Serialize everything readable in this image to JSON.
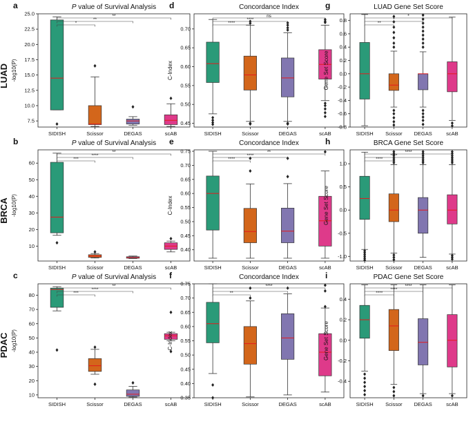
{
  "figure": {
    "row_labels": [
      "LUAD",
      "BRCA",
      "PDAC"
    ],
    "colors": {
      "SIDISH": "#2a9a78",
      "Scissor": "#d3661b",
      "DEGAS": "#8176b0",
      "scAB": "#de3a8a",
      "median": "#e41a1c",
      "outlier": "#222222"
    }
  },
  "chart_data": [
    {
      "type": "box",
      "panel": "a",
      "title": "P value of Survival Analysis",
      "title_italic_prefix": "P",
      "ylabel": "-log10(P)",
      "categories": [
        "SIDISH",
        "Scissor",
        "DEGAS",
        "scAB"
      ],
      "ylim": [
        6.5,
        25
      ],
      "yticks": [
        7.5,
        10.0,
        12.5,
        15.0,
        17.5,
        20.0,
        22.5,
        25.0
      ],
      "tick_decimals": 1,
      "boxes": [
        {
          "q1": 9.3,
          "median": 14.5,
          "q3": 24.0,
          "whislo": 9.3,
          "whishi": 24.5,
          "fliers": [
            7.0
          ]
        },
        {
          "q1": 6.9,
          "median": 7.0,
          "q3": 10.0,
          "whislo": 6.6,
          "whishi": 14.7,
          "fliers": [
            16.5
          ]
        },
        {
          "q1": 7.0,
          "median": 7.5,
          "q3": 7.8,
          "whislo": 6.8,
          "whishi": 8.2,
          "fliers": [
            9.8
          ]
        },
        {
          "q1": 6.9,
          "median": 7.6,
          "q3": 8.5,
          "whislo": 6.6,
          "whishi": 10.3,
          "fliers": [
            11.2
          ]
        }
      ],
      "significance": [
        {
          "from": 0,
          "to": 1,
          "label": "*"
        },
        {
          "from": 0,
          "to": 2,
          "label": "**"
        },
        {
          "from": 0,
          "to": 3,
          "label": "**"
        }
      ]
    },
    {
      "type": "box",
      "panel": "d",
      "title": "Concordance Index",
      "ylabel": "C-Index",
      "categories": [
        "SIDISH",
        "Scissor",
        "DEGAS",
        "scAB"
      ],
      "ylim": [
        0.44,
        0.74
      ],
      "yticks": [
        0.45,
        0.5,
        0.55,
        0.6,
        0.65,
        0.7
      ],
      "tick_decimals": 2,
      "boxes": [
        {
          "q1": 0.558,
          "median": 0.608,
          "q3": 0.665,
          "whislo": 0.475,
          "whishi": 0.725,
          "fliers": [
            0.447,
            0.452,
            0.458,
            0.465
          ]
        },
        {
          "q1": 0.538,
          "median": 0.578,
          "q3": 0.628,
          "whislo": 0.455,
          "whishi": 0.71,
          "fliers": [
            0.715,
            0.72,
            0.448,
            0.45
          ]
        },
        {
          "q1": 0.52,
          "median": 0.57,
          "q3": 0.623,
          "whislo": 0.455,
          "whishi": 0.69,
          "fliers": [
            0.697,
            0.703,
            0.71,
            0.716,
            0.45,
            0.448
          ]
        },
        {
          "q1": 0.567,
          "median": 0.606,
          "q3": 0.645,
          "whislo": 0.51,
          "whishi": 0.71,
          "fliers": [
            0.717,
            0.72,
            0.725,
            0.468,
            0.478,
            0.488,
            0.497,
            0.503
          ]
        }
      ],
      "significance": [
        {
          "from": 0,
          "to": 1,
          "label": "****"
        },
        {
          "from": 0,
          "to": 2,
          "label": "****"
        },
        {
          "from": 0,
          "to": 3,
          "label": "ns"
        }
      ]
    },
    {
      "type": "box",
      "panel": "g",
      "title": "LUAD Gene Set Score",
      "ylabel": "Gene Set Score",
      "categories": [
        "SIDISH",
        "Scissor",
        "DEGAS",
        "scAB"
      ],
      "ylim": [
        -0.8,
        0.9
      ],
      "yticks": [
        -0.8,
        -0.6,
        -0.4,
        -0.2,
        0.0,
        0.2,
        0.4,
        0.6,
        0.8
      ],
      "tick_decimals": 1,
      "boxes": [
        {
          "q1": -0.38,
          "median": 0.0,
          "q3": 0.47,
          "whislo": -0.78,
          "whishi": 0.89,
          "fliers": []
        },
        {
          "q1": -0.25,
          "median": -0.17,
          "q3": 0.0,
          "whislo": -0.5,
          "whishi": 0.34,
          "fliers": [
            0.4,
            0.46,
            0.54,
            0.62,
            0.7,
            0.78,
            0.86,
            -0.55,
            -0.6,
            -0.66,
            -0.72,
            -0.77
          ]
        },
        {
          "q1": -0.24,
          "median": 0.0,
          "q3": 0.0,
          "whislo": -0.5,
          "whishi": 0.33,
          "fliers": [
            0.4,
            0.46,
            0.52,
            0.58,
            0.64,
            0.7,
            0.76,
            0.82,
            0.88,
            -0.55,
            -0.6,
            -0.65,
            -0.7,
            -0.76
          ]
        },
        {
          "q1": -0.27,
          "median": 0.0,
          "q3": 0.18,
          "whislo": -0.7,
          "whishi": 0.85,
          "fliers": [
            -0.74,
            -0.78
          ]
        }
      ],
      "significance": [
        {
          "from": 0,
          "to": 1,
          "label": "**"
        },
        {
          "from": 0,
          "to": 2,
          "label": "*"
        },
        {
          "from": 0,
          "to": 3,
          "label": "*"
        }
      ]
    },
    {
      "type": "box",
      "panel": "b",
      "title": "P value of Survival Analysis",
      "title_italic_prefix": "P",
      "ylabel": "-log10(P)",
      "categories": [
        "SIDISH",
        "Scissor",
        "DEGAS",
        "scAB"
      ],
      "ylim": [
        1,
        68
      ],
      "yticks": [
        10,
        20,
        30,
        40,
        50,
        60
      ],
      "tick_decimals": 0,
      "boxes": [
        {
          "q1": 18.0,
          "median": 27.5,
          "q3": 60.5,
          "whislo": 16.5,
          "whishi": 66.0,
          "fliers": [
            12.0
          ]
        },
        {
          "q1": 3.2,
          "median": 4.0,
          "q3": 4.8,
          "whislo": 2.8,
          "whishi": 5.5,
          "fliers": [
            6.5
          ]
        },
        {
          "q1": 2.7,
          "median": 3.1,
          "q3": 3.6,
          "whislo": 2.5,
          "whishi": 4.0,
          "fliers": []
        },
        {
          "q1": 8.0,
          "median": 10.0,
          "q3": 12.0,
          "whislo": 6.5,
          "whishi": 13.0,
          "fliers": [
            14.5
          ]
        }
      ],
      "significance": [
        {
          "from": 0,
          "to": 1,
          "label": "***"
        },
        {
          "from": 0,
          "to": 2,
          "label": "****"
        },
        {
          "from": 0,
          "to": 3,
          "label": "**"
        }
      ]
    },
    {
      "type": "box",
      "panel": "e",
      "title": "Concordance Index",
      "ylabel": "C-Index",
      "categories": [
        "SIDISH",
        "Scissor",
        "DEGAS",
        "scAB"
      ],
      "ylim": [
        0.36,
        0.755
      ],
      "yticks": [
        0.4,
        0.45,
        0.5,
        0.55,
        0.6,
        0.65,
        0.7,
        0.75
      ],
      "tick_decimals": 2,
      "boxes": [
        {
          "q1": 0.47,
          "median": 0.6,
          "q3": 0.662,
          "whislo": 0.37,
          "whishi": 0.75,
          "fliers": []
        },
        {
          "q1": 0.425,
          "median": 0.465,
          "q3": 0.547,
          "whislo": 0.37,
          "whishi": 0.634,
          "fliers": [
            0.68,
            0.725
          ]
        },
        {
          "q1": 0.425,
          "median": 0.466,
          "q3": 0.548,
          "whislo": 0.37,
          "whishi": 0.635,
          "fliers": [
            0.66,
            0.725
          ]
        },
        {
          "q1": 0.413,
          "median": 0.503,
          "q3": 0.59,
          "whislo": 0.37,
          "whishi": 0.68,
          "fliers": [
            0.748
          ]
        }
      ],
      "significance": [
        {
          "from": 0,
          "to": 1,
          "label": "****"
        },
        {
          "from": 0,
          "to": 2,
          "label": "****"
        },
        {
          "from": 0,
          "to": 3,
          "label": "**"
        }
      ]
    },
    {
      "type": "box",
      "panel": "h",
      "title": "BRCA Gene Set Score",
      "ylabel": "Gene Set Score",
      "categories": [
        "SIDISH",
        "Scissor",
        "DEGAS",
        "scAB"
      ],
      "ylim": [
        -1.1,
        1.3
      ],
      "yticks": [
        -1.0,
        -0.5,
        0.0,
        0.5,
        1.0
      ],
      "tick_decimals": 1,
      "boxes": [
        {
          "q1": -0.2,
          "median": 0.25,
          "q3": 0.73,
          "whislo": -0.85,
          "whishi": 1.25,
          "fliers": [
            -0.88,
            -0.92,
            -0.96,
            -1.0,
            -1.04,
            -1.08
          ]
        },
        {
          "q1": -0.25,
          "median": 0.0,
          "q3": 0.35,
          "whislo": -0.93,
          "whishi": 0.98,
          "fliers": [
            1.02,
            1.06,
            1.1,
            1.14,
            1.18,
            1.22,
            1.26,
            -0.97,
            -1.02,
            -1.07
          ]
        },
        {
          "q1": -0.5,
          "median": 0.0,
          "q3": 0.27,
          "whislo": -1.02,
          "whishi": 0.98,
          "fliers": [
            1.02,
            1.06,
            1.1,
            1.14,
            1.18,
            1.22,
            1.26
          ]
        },
        {
          "q1": -0.3,
          "median": 0.0,
          "q3": 0.33,
          "whislo": -0.95,
          "whishi": 0.98,
          "fliers": [
            1.02,
            1.06,
            1.1,
            1.14,
            1.18,
            1.22,
            1.26,
            -0.98,
            -1.02,
            -1.06
          ]
        }
      ],
      "significance": [
        {
          "from": 0,
          "to": 1,
          "label": "****"
        },
        {
          "from": 0,
          "to": 2,
          "label": "****"
        },
        {
          "from": 0,
          "to": 3,
          "label": "****"
        }
      ]
    },
    {
      "type": "box",
      "panel": "c",
      "title": "P value of Survival Analysis",
      "title_italic_prefix": "P",
      "ylabel": "-log10(P)",
      "categories": [
        "SIDISH",
        "Scissor",
        "DEGAS",
        "scAB"
      ],
      "ylim": [
        8,
        88
      ],
      "yticks": [
        10,
        20,
        30,
        40,
        50,
        60,
        70,
        80
      ],
      "tick_decimals": 0,
      "boxes": [
        {
          "q1": 71.5,
          "median": 84.0,
          "q3": 85.0,
          "whislo": 69.0,
          "whishi": 86.0,
          "fliers": [
            41.5
          ]
        },
        {
          "q1": 26.5,
          "median": 30.5,
          "q3": 35.5,
          "whislo": 24.5,
          "whishi": 42.0,
          "fliers": [
            43.5,
            17.5
          ]
        },
        {
          "q1": 9.0,
          "median": 10.5,
          "q3": 13.5,
          "whislo": 8.5,
          "whishi": 16.0,
          "fliers": [
            18.5
          ]
        },
        {
          "q1": 49.0,
          "median": 51.5,
          "q3": 53.0,
          "whislo": 48.0,
          "whishi": 54.0,
          "fliers": [
            68.0,
            40.5
          ]
        }
      ],
      "significance": [
        {
          "from": 0,
          "to": 1,
          "label": "***"
        },
        {
          "from": 0,
          "to": 2,
          "label": "****"
        },
        {
          "from": 0,
          "to": 3,
          "label": "**"
        }
      ]
    },
    {
      "type": "box",
      "panel": "f",
      "title": "Concordance Index",
      "ylabel": "C-Index",
      "categories": [
        "SIDISH",
        "Scissor",
        "DEGAS",
        "scAB"
      ],
      "ylim": [
        0.35,
        0.75
      ],
      "yticks": [
        0.35,
        0.4,
        0.45,
        0.5,
        0.55,
        0.6,
        0.65,
        0.7,
        0.75
      ],
      "tick_decimals": 2,
      "boxes": [
        {
          "q1": 0.543,
          "median": 0.61,
          "q3": 0.685,
          "whislo": 0.435,
          "whishi": 0.75,
          "fliers": [
            0.395,
            0.35
          ]
        },
        {
          "q1": 0.468,
          "median": 0.54,
          "q3": 0.6,
          "whislo": 0.353,
          "whishi": 0.69,
          "fliers": [
            0.7,
            0.735
          ]
        },
        {
          "q1": 0.485,
          "median": 0.56,
          "q3": 0.645,
          "whislo": 0.36,
          "whishi": 0.715,
          "fliers": [
            0.735
          ]
        },
        {
          "q1": 0.427,
          "median": 0.51,
          "q3": 0.575,
          "whislo": 0.37,
          "whishi": 0.665,
          "fliers": [
            0.67,
            0.725,
            0.745
          ]
        }
      ],
      "significance": [
        {
          "from": 0,
          "to": 1,
          "label": "**"
        },
        {
          "from": 0,
          "to": 2,
          "label": "*"
        },
        {
          "from": 0,
          "to": 3,
          "label": "****"
        }
      ]
    },
    {
      "type": "box",
      "panel": "i",
      "title": "PDAC Gene Set Score",
      "ylabel": "Gene Set Score",
      "categories": [
        "SIDISH",
        "Scissor",
        "DEGAS",
        "scAB"
      ],
      "ylim": [
        -0.56,
        0.55
      ],
      "yticks": [
        -0.4,
        -0.2,
        0.0,
        0.2,
        0.4
      ],
      "tick_decimals": 1,
      "boxes": [
        {
          "q1": 0.02,
          "median": 0.2,
          "q3": 0.34,
          "whislo": -0.3,
          "whishi": 0.54,
          "fliers": [
            -0.33,
            -0.37,
            -0.41,
            -0.45,
            -0.49,
            -0.53
          ]
        },
        {
          "q1": -0.1,
          "median": 0.14,
          "q3": 0.3,
          "whislo": -0.43,
          "whishi": 0.54,
          "fliers": [
            -0.46,
            -0.5,
            -0.54
          ]
        },
        {
          "q1": -0.24,
          "median": -0.02,
          "q3": 0.21,
          "whislo": -0.52,
          "whishi": 0.54,
          "fliers": [
            -0.54
          ]
        },
        {
          "q1": -0.26,
          "median": 0.0,
          "q3": 0.25,
          "whislo": -0.52,
          "whishi": 0.54,
          "fliers": [
            -0.54
          ]
        }
      ],
      "significance": [
        {
          "from": 0,
          "to": 1,
          "label": "****"
        },
        {
          "from": 0,
          "to": 2,
          "label": "****"
        },
        {
          "from": 0,
          "to": 3,
          "label": "****"
        }
      ]
    }
  ]
}
